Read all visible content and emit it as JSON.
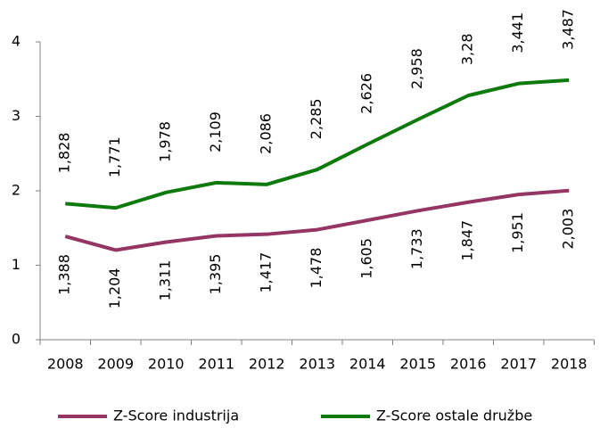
{
  "chart_data": {
    "type": "line",
    "categories": [
      "2008",
      "2009",
      "2010",
      "2011",
      "2012",
      "2013",
      "2014",
      "2015",
      "2016",
      "2017",
      "2018"
    ],
    "series": [
      {
        "name": "Z-Score industrija",
        "color": "#953563",
        "values": [
          1.388,
          1.204,
          1.311,
          1.395,
          1.417,
          1.478,
          1.605,
          1.733,
          1.847,
          1.951,
          2.003
        ],
        "value_labels": [
          "1,388",
          "1,204",
          "1,311",
          "1,395",
          "1,417",
          "1,478",
          "1,605",
          "1,733",
          "1,847",
          "1,951",
          "2,003"
        ]
      },
      {
        "name": "Z-Score ostale družbe",
        "color": "#0e7a0d",
        "values": [
          1.828,
          1.771,
          1.978,
          2.109,
          2.086,
          2.285,
          2.626,
          2.958,
          3.28,
          3.441,
          3.487
        ],
        "value_labels": [
          "1,828",
          "1,771",
          "1,978",
          "2,109",
          "2,086",
          "2,285",
          "2,626",
          "2,958",
          "3,28",
          "3,441",
          "3,487"
        ]
      }
    ],
    "ylim": [
      0,
      4
    ],
    "yticks": [
      0,
      1,
      2,
      3,
      4
    ],
    "legend": "bottom"
  }
}
